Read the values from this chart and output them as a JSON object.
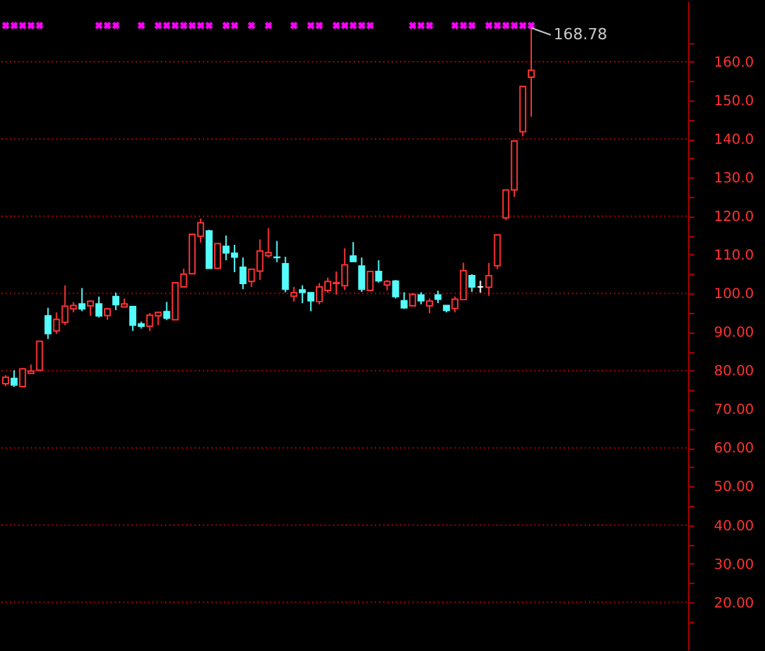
{
  "chart_data": {
    "type": "candlestick",
    "categories": [
      null,
      null,
      null,
      null,
      null,
      null,
      null,
      null,
      null,
      null,
      null,
      null,
      null,
      null,
      null,
      null,
      null,
      null,
      null,
      null,
      null,
      null,
      null,
      null,
      null,
      null,
      null,
      null,
      null,
      null,
      null,
      null,
      null,
      null,
      null,
      null,
      null,
      null,
      null,
      null,
      null,
      null,
      null,
      null,
      null,
      null,
      null,
      null,
      null,
      null,
      null,
      null,
      null,
      null,
      null,
      null,
      null,
      null,
      null,
      null,
      null,
      null,
      null,
      null,
      null,
      null,
      null,
      null,
      null,
      null,
      null,
      null,
      null,
      null,
      null,
      null,
      null,
      null,
      null,
      null,
      null
    ],
    "ohlc": [
      [
        76.6,
        78.8,
        76.0,
        78.3
      ],
      [
        78.0,
        80.1,
        75.8,
        76.3
      ],
      [
        75.9,
        80.7,
        75.9,
        80.5
      ],
      [
        79.3,
        81.6,
        79.3,
        79.9
      ],
      [
        80.1,
        87.6,
        80.1,
        87.6
      ],
      [
        94.2,
        96.3,
        88.2,
        89.6
      ],
      [
        90.3,
        95.1,
        89.5,
        93.3
      ],
      [
        92.5,
        102.1,
        91.8,
        96.7
      ],
      [
        96.0,
        97.8,
        95.1,
        96.9
      ],
      [
        97.3,
        101.4,
        95.4,
        96.0
      ],
      [
        96.8,
        98.0,
        94.2,
        98.0
      ],
      [
        97.3,
        99.2,
        93.8,
        94.2
      ],
      [
        94.3,
        96.3,
        93.2,
        96.0
      ],
      [
        99.2,
        100.2,
        95.7,
        97.1
      ],
      [
        96.5,
        98.7,
        96.5,
        97.3
      ],
      [
        96.6,
        96.6,
        90.3,
        91.8
      ],
      [
        92.1,
        92.7,
        90.9,
        91.5
      ],
      [
        91.5,
        94.9,
        90.3,
        94.4
      ],
      [
        94.2,
        95.1,
        91.8,
        95.1
      ],
      [
        95.3,
        97.8,
        93.1,
        93.6
      ],
      [
        93.2,
        102.8,
        93.2,
        102.8
      ],
      [
        101.7,
        106.4,
        101.7,
        105.0
      ],
      [
        105.1,
        115.3,
        105.1,
        115.3
      ],
      [
        114.8,
        119.4,
        113.2,
        118.3
      ],
      [
        116.2,
        116.5,
        106.5,
        106.5
      ],
      [
        106.5,
        112.9,
        106.5,
        112.9
      ],
      [
        112.2,
        115.0,
        108.6,
        110.5
      ],
      [
        110.4,
        112.6,
        105.5,
        109.4
      ],
      [
        106.8,
        109.3,
        101.1,
        102.6
      ],
      [
        103.1,
        106.3,
        101.7,
        106.3
      ],
      [
        105.8,
        114.0,
        103.5,
        111.0
      ],
      [
        109.8,
        116.9,
        109.3,
        110.6
      ],
      [
        109.4,
        113.6,
        108.1,
        109.3
      ],
      [
        107.7,
        109.5,
        100.3,
        101.1
      ],
      [
        99.3,
        101.7,
        97.9,
        100.2
      ],
      [
        100.9,
        102.1,
        97.5,
        100.3
      ],
      [
        100.2,
        100.2,
        95.4,
        98.1
      ],
      [
        97.9,
        102.7,
        97.2,
        101.7
      ],
      [
        100.8,
        104.1,
        100.2,
        103.1
      ],
      [
        102.6,
        105.7,
        99.7,
        102.8
      ],
      [
        102.0,
        111.7,
        100.9,
        107.4
      ],
      [
        109.7,
        113.3,
        108.3,
        108.3
      ],
      [
        107.1,
        109.3,
        100.4,
        101.1
      ],
      [
        100.8,
        105.7,
        100.8,
        105.7
      ],
      [
        105.7,
        108.6,
        102.8,
        103.3
      ],
      [
        102.2,
        103.5,
        100.8,
        103.1
      ],
      [
        103.2,
        103.5,
        98.7,
        99.2
      ],
      [
        98.1,
        100.3,
        96.0,
        96.3
      ],
      [
        96.8,
        100.1,
        96.8,
        99.8
      ],
      [
        99.6,
        100.3,
        97.2,
        98.1
      ],
      [
        96.8,
        98.7,
        94.9,
        98.0
      ],
      [
        99.6,
        100.7,
        97.5,
        98.5
      ],
      [
        96.9,
        96.9,
        95.1,
        95.6
      ],
      [
        96.1,
        99.2,
        95.1,
        98.5
      ],
      [
        98.4,
        108.0,
        98.4,
        105.9
      ],
      [
        104.6,
        105.0,
        100.4,
        101.7
      ],
      [
        101.7,
        103.3,
        100.2,
        101.7
      ],
      [
        101.6,
        107.9,
        99.4,
        104.6
      ],
      [
        107.2,
        115.2,
        106.3,
        115.2
      ],
      [
        119.6,
        126.8,
        119.0,
        126.8
      ],
      [
        126.8,
        139.5,
        125.0,
        139.5
      ],
      [
        141.9,
        153.6,
        140.7,
        153.6
      ],
      [
        156.0,
        168.78,
        145.8,
        157.8
      ],
      null,
      null,
      null,
      null,
      null,
      null,
      null,
      null,
      null,
      null,
      null,
      null,
      null,
      null,
      null,
      null,
      null,
      null
    ],
    "colors": [
      "#ff3232",
      "#54fcfc",
      "#ff3232",
      "#ff3232",
      "#ff3232",
      "#54fcfc",
      "#ff3232",
      "#ff3232",
      "#ff3232",
      "#54fcfc",
      "#ff3232",
      "#54fcfc",
      "#ff3232",
      "#54fcfc",
      "#ff3232",
      "#54fcfc",
      "#54fcfc",
      "#ff3232",
      "#ff3232",
      "#54fcfc",
      "#ff3232",
      "#ff3232",
      "#ff3232",
      "#ff3232",
      "#54fcfc",
      "#ff3232",
      "#54fcfc",
      "#54fcfc",
      "#54fcfc",
      "#ff3232",
      "#ff3232",
      "#ff3232",
      "#54fcfc",
      "#54fcfc",
      "#ff3232",
      "#54fcfc",
      "#54fcfc",
      "#ff3232",
      "#ff3232",
      "#ff3232",
      "#ff3232",
      "#54fcfc",
      "#54fcfc",
      "#ff3232",
      "#54fcfc",
      "#ff3232",
      "#54fcfc",
      "#54fcfc",
      "#ff3232",
      "#54fcfc",
      "#ff3232",
      "#54fcfc",
      "#54fcfc",
      "#ff3232",
      "#ff3232",
      "#54fcfc",
      "#ffffff",
      "#ff3232",
      "#ff3232",
      "#ff3232",
      "#ff3232",
      "#ff3232",
      "#ff3232",
      null,
      null,
      null,
      null,
      null,
      null,
      null,
      null,
      null,
      null,
      null,
      null,
      null,
      null,
      null,
      null,
      null,
      null
    ],
    "series": [
      {
        "type": "scatter",
        "marker": "cross",
        "color": "#ff00ff",
        "values": [
          169.4,
          169.4,
          169.4,
          169.4,
          169.4,
          null,
          null,
          null,
          null,
          null,
          null,
          169.4,
          169.4,
          169.4,
          null,
          null,
          169.4,
          null,
          169.4,
          169.4,
          169.4,
          169.4,
          169.4,
          169.4,
          169.4,
          null,
          169.4,
          169.4,
          null,
          169.4,
          null,
          169.4,
          null,
          null,
          169.4,
          null,
          169.4,
          169.4,
          null,
          169.4,
          169.4,
          169.4,
          169.4,
          169.4,
          null,
          null,
          null,
          null,
          169.4,
          169.4,
          169.4,
          null,
          null,
          169.4,
          169.4,
          169.4,
          null,
          169.4,
          169.4,
          169.4,
          169.4,
          169.4,
          169.4,
          null,
          null,
          null,
          null,
          null,
          null,
          null,
          null,
          null,
          null,
          null,
          null,
          null,
          null,
          null,
          null,
          null,
          null
        ]
      }
    ],
    "annotations": [
      "168.78"
    ],
    "ylim": [
      7.7,
      175.7
    ],
    "yticks": [
      {
        "value": 15,
        "label": null
      },
      {
        "value": 20,
        "label": "20.00"
      },
      {
        "value": 25,
        "label": null
      },
      {
        "value": 30,
        "label": "30.00"
      },
      {
        "value": 35,
        "label": null
      },
      {
        "value": 40,
        "label": "40.00"
      },
      {
        "value": 45,
        "label": null
      },
      {
        "value": 50,
        "label": "50.00"
      },
      {
        "value": 55,
        "label": null
      },
      {
        "value": 60,
        "label": "60.00"
      },
      {
        "value": 65,
        "label": null
      },
      {
        "value": 70,
        "label": "70.00"
      },
      {
        "value": 75,
        "label": null
      },
      {
        "value": 80,
        "label": "80.00"
      },
      {
        "value": 85,
        "label": null
      },
      {
        "value": 90,
        "label": "90.00"
      },
      {
        "value": 95,
        "label": null
      },
      {
        "value": 100,
        "label": "100.0"
      },
      {
        "value": 105,
        "label": null
      },
      {
        "value": 110,
        "label": "110.0"
      },
      {
        "value": 115,
        "label": null
      },
      {
        "value": 120,
        "label": "120.0"
      },
      {
        "value": 125,
        "label": null
      },
      {
        "value": 130,
        "label": "130.0"
      },
      {
        "value": 135,
        "label": null
      },
      {
        "value": 140,
        "label": "140.0"
      },
      {
        "value": 145,
        "label": null
      },
      {
        "value": 150,
        "label": "150.0"
      },
      {
        "value": 155,
        "label": null
      },
      {
        "value": 160,
        "label": "160.0"
      },
      {
        "value": 165,
        "label": null
      }
    ],
    "grid": "y"
  }
}
